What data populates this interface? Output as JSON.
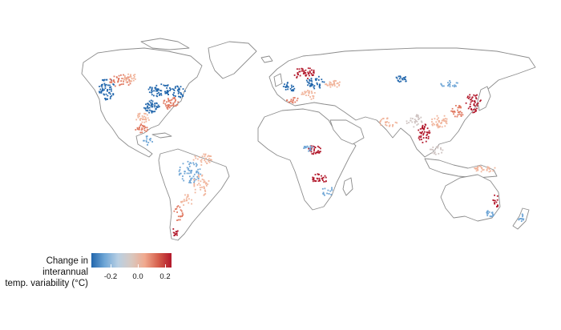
{
  "legend": {
    "title_line1": "Change in interannual",
    "title_line2": "temp. variability (°C)",
    "ticks": [
      "-0.2",
      "0.0",
      "0.2"
    ],
    "tick_values": [
      -0.2,
      0.0,
      0.2
    ],
    "range": [
      -0.28,
      0.28
    ],
    "colors": [
      "#2166ac",
      "#6fa6d6",
      "#b8cfe3",
      "#d8c8c0",
      "#f0a98e",
      "#d6604d",
      "#b2182b"
    ]
  },
  "colors": {
    "strong_cool": "#2166ac",
    "cool": "#6fa6d6",
    "light_cool": "#a9c9e6",
    "neutral": "#cfc4c2",
    "light_warm": "#f1b59c",
    "warm": "#e07860",
    "strong_warm": "#b2182b",
    "coastline": "#8c8c8c"
  }
}
